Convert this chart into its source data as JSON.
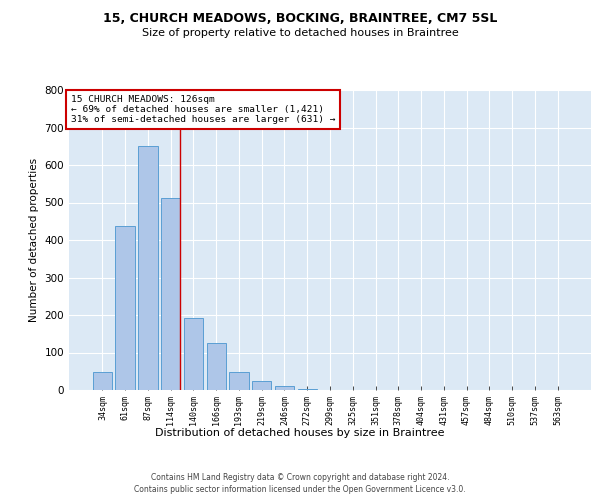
{
  "title_line1": "15, CHURCH MEADOWS, BOCKING, BRAINTREE, CM7 5SL",
  "title_line2": "Size of property relative to detached houses in Braintree",
  "xlabel": "Distribution of detached houses by size in Braintree",
  "ylabel": "Number of detached properties",
  "footer_line1": "Contains HM Land Registry data © Crown copyright and database right 2024.",
  "footer_line2": "Contains public sector information licensed under the Open Government Licence v3.0.",
  "annotation_line1": "15 CHURCH MEADOWS: 126sqm",
  "annotation_line2": "← 69% of detached houses are smaller (1,421)",
  "annotation_line3": "31% of semi-detached houses are larger (631) →",
  "bar_labels": [
    "34sqm",
    "61sqm",
    "87sqm",
    "114sqm",
    "140sqm",
    "166sqm",
    "193sqm",
    "219sqm",
    "246sqm",
    "272sqm",
    "299sqm",
    "325sqm",
    "351sqm",
    "378sqm",
    "404sqm",
    "431sqm",
    "457sqm",
    "484sqm",
    "510sqm",
    "537sqm",
    "563sqm"
  ],
  "bar_values": [
    48,
    438,
    651,
    513,
    192,
    125,
    48,
    25,
    10,
    2,
    0,
    0,
    0,
    0,
    0,
    0,
    0,
    0,
    0,
    0,
    0
  ],
  "bar_color": "#aec6e8",
  "bar_edge_color": "#5a9fd4",
  "background_color": "#dce9f5",
  "vline_color": "#cc0000",
  "ylim": [
    0,
    800
  ],
  "yticks": [
    0,
    100,
    200,
    300,
    400,
    500,
    600,
    700,
    800
  ],
  "grid_color": "#ffffff",
  "annotation_box_color": "#cc0000"
}
